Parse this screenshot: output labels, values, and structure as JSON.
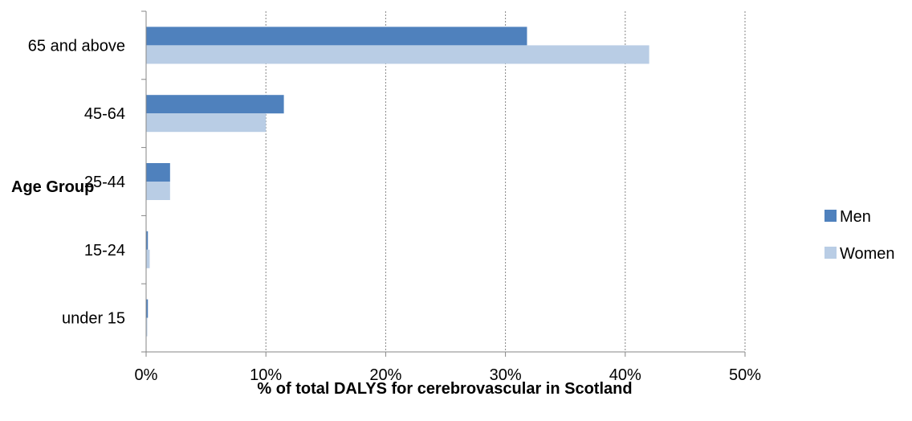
{
  "chart_data": {
    "type": "bar",
    "orientation": "horizontal",
    "categories": [
      "65 and above",
      "45-64",
      "25-44",
      "15-24",
      "under 15"
    ],
    "series": [
      {
        "name": "Men",
        "values": [
          31.8,
          11.5,
          2.0,
          0.15,
          0.15
        ],
        "color": "#4F81BD"
      },
      {
        "name": "Women",
        "values": [
          42.0,
          10.0,
          2.0,
          0.3,
          0.1
        ],
        "color": "#B9CDE5"
      }
    ],
    "xlabel": "% of total DALYS for cerebrovascular in Scotland",
    "ylabel": "Age Group",
    "xlim": [
      0,
      50
    ],
    "xticks": [
      0,
      10,
      20,
      30,
      40,
      50
    ],
    "xtick_labels": [
      "0%",
      "10%",
      "20%",
      "30%",
      "40%",
      "50%"
    ],
    "grid": "vertical dotted",
    "legend_position": "right"
  }
}
